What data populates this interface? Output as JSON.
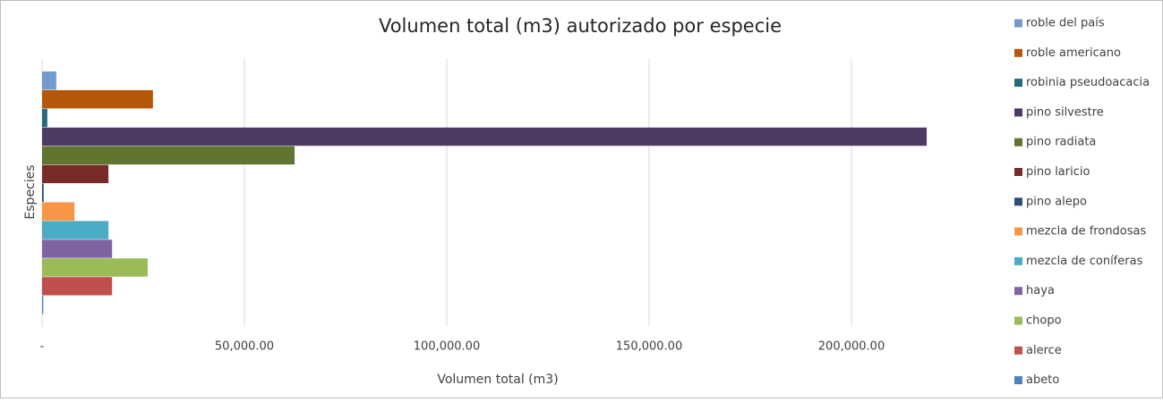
{
  "chart_data": {
    "type": "bar",
    "orientation": "horizontal",
    "title": "Volumen total (m3) autorizado por especie",
    "xlabel": "Volumen total (m3)",
    "ylabel": "Especies",
    "categories": [
      null
    ],
    "series": [
      {
        "name": "roble del país",
        "color": "#729aca",
        "values": [
          3500
        ]
      },
      {
        "name": "roble americano",
        "color": "#b65708",
        "values": [
          27400
        ]
      },
      {
        "name": "robinia pseudoacacia",
        "color": "#276a7c",
        "values": [
          1300
        ]
      },
      {
        "name": "pino silvestre",
        "color": "#4d3b62",
        "values": [
          218600
        ]
      },
      {
        "name": "pino radiata",
        "color": "#5f7530",
        "values": [
          62400
        ]
      },
      {
        "name": "pino laricio",
        "color": "#772c2a",
        "values": [
          16400
        ]
      },
      {
        "name": "pino alepo",
        "color": "#2c4d75",
        "values": [
          400
        ]
      },
      {
        "name": "mezcla de frondosas",
        "color": "#f79646",
        "values": [
          8000
        ]
      },
      {
        "name": "mezcla de coníferas",
        "color": "#4bacc6",
        "values": [
          16400
        ]
      },
      {
        "name": "haya",
        "color": "#8064a2",
        "values": [
          17300
        ]
      },
      {
        "name": "chopo",
        "color": "#9bbb59",
        "values": [
          26100
        ]
      },
      {
        "name": "alerce",
        "color": "#c0504d",
        "values": [
          17300
        ]
      },
      {
        "name": "abeto",
        "color": "#4f81bd",
        "values": [
          300
        ]
      }
    ],
    "xlim": [
      0,
      225000
    ],
    "xticks": [
      {
        "value": 0,
        "label": "-"
      },
      {
        "value": 50000,
        "label": "50,000.00"
      },
      {
        "value": 100000,
        "label": "100,000.00"
      },
      {
        "value": 150000,
        "label": "150,000.00"
      },
      {
        "value": 200000,
        "label": "200,000.00"
      }
    ],
    "grid": true,
    "legend": "right"
  }
}
